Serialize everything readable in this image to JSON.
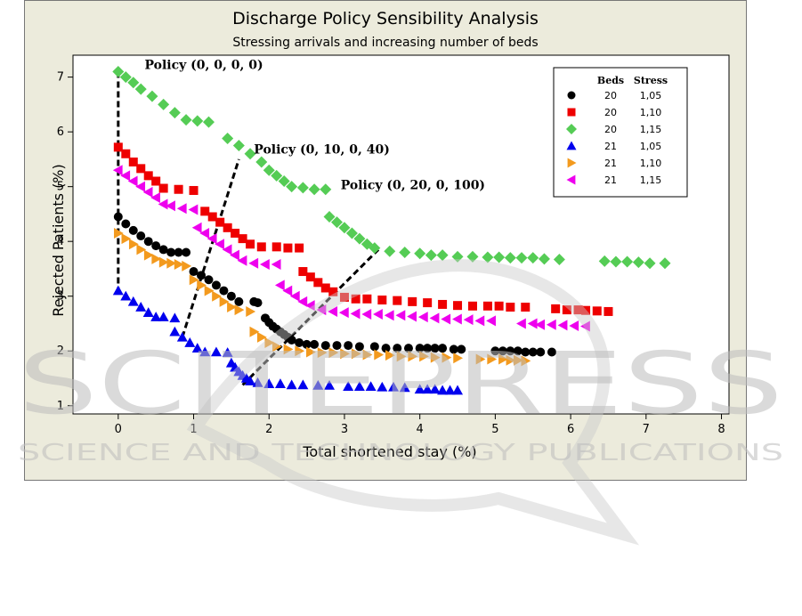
{
  "chart_data": {
    "type": "scatter",
    "title": "Discharge Policy Sensibility Analysis",
    "subtitle": "Stressing arrivals and increasing number of beds",
    "xlabel": "Total shortened stay (%)",
    "ylabel": "Rejected Patients (%)",
    "xlim": [
      -0.6,
      8.1
    ],
    "ylim": [
      0.85,
      7.4
    ],
    "x_ticks": [
      0,
      1,
      2,
      3,
      4,
      5,
      6,
      7,
      8
    ],
    "y_ticks": [
      1,
      2,
      3,
      4,
      5,
      6,
      7
    ],
    "grid": false,
    "legend_position": "top-right",
    "legend": {
      "headers": [
        "Beds",
        "Stress"
      ],
      "entries": [
        {
          "beds": "20",
          "stress": "1,05",
          "marker": "circle",
          "color": "#000000"
        },
        {
          "beds": "20",
          "stress": "1,10",
          "marker": "square",
          "color": "#ee0000"
        },
        {
          "beds": "20",
          "stress": "1,15",
          "marker": "diamond",
          "color": "#55cc55"
        },
        {
          "beds": "21",
          "stress": "1,05",
          "marker": "triangle-up",
          "color": "#0000ee"
        },
        {
          "beds": "21",
          "stress": "1,10",
          "marker": "triangle-right",
          "color": "#f39a1e"
        },
        {
          "beds": "21",
          "stress": "1,15",
          "marker": "triangle-left",
          "color": "#ee00ee"
        }
      ]
    },
    "series": [
      {
        "beds": "20",
        "stress": "1,05",
        "marker": "circle",
        "color": "#000000",
        "points": [
          [
            0,
            4.45
          ],
          [
            0.1,
            4.32
          ],
          [
            0.2,
            4.2
          ],
          [
            0.3,
            4.1
          ],
          [
            0.4,
            4.0
          ],
          [
            0.5,
            3.92
          ],
          [
            0.6,
            3.85
          ],
          [
            0.7,
            3.8
          ],
          [
            0.8,
            3.8
          ],
          [
            0.9,
            3.8
          ],
          [
            1.0,
            3.45
          ],
          [
            1.1,
            3.38
          ],
          [
            1.2,
            3.3
          ],
          [
            1.3,
            3.2
          ],
          [
            1.4,
            3.1
          ],
          [
            1.5,
            3.0
          ],
          [
            1.6,
            2.9
          ],
          [
            1.8,
            2.9
          ],
          [
            1.85,
            2.88
          ],
          [
            1.95,
            2.6
          ],
          [
            2.0,
            2.52
          ],
          [
            2.05,
            2.45
          ],
          [
            2.1,
            2.4
          ],
          [
            2.15,
            2.35
          ],
          [
            2.2,
            2.3
          ],
          [
            2.25,
            2.25
          ],
          [
            2.3,
            2.2
          ],
          [
            2.4,
            2.15
          ],
          [
            2.5,
            2.12
          ],
          [
            2.6,
            2.12
          ],
          [
            2.75,
            2.1
          ],
          [
            2.9,
            2.1
          ],
          [
            3.05,
            2.1
          ],
          [
            3.2,
            2.08
          ],
          [
            3.4,
            2.08
          ],
          [
            3.55,
            2.05
          ],
          [
            3.7,
            2.05
          ],
          [
            3.85,
            2.05
          ],
          [
            4.0,
            2.05
          ],
          [
            4.1,
            2.05
          ],
          [
            4.2,
            2.05
          ],
          [
            4.3,
            2.05
          ],
          [
            4.45,
            2.03
          ],
          [
            4.55,
            2.03
          ],
          [
            5.0,
            2.0
          ],
          [
            5.1,
            2.0
          ],
          [
            5.2,
            2.0
          ],
          [
            5.3,
            2.0
          ],
          [
            5.4,
            1.98
          ],
          [
            5.5,
            1.98
          ],
          [
            5.6,
            1.98
          ],
          [
            5.75,
            1.98
          ]
        ]
      },
      {
        "beds": "20",
        "stress": "1,10",
        "marker": "square",
        "color": "#ee0000",
        "points": [
          [
            0,
            5.72
          ],
          [
            0.1,
            5.6
          ],
          [
            0.2,
            5.45
          ],
          [
            0.3,
            5.33
          ],
          [
            0.4,
            5.2
          ],
          [
            0.5,
            5.1
          ],
          [
            0.6,
            4.97
          ],
          [
            0.8,
            4.95
          ],
          [
            1.0,
            4.93
          ],
          [
            1.15,
            4.55
          ],
          [
            1.25,
            4.45
          ],
          [
            1.35,
            4.35
          ],
          [
            1.45,
            4.25
          ],
          [
            1.55,
            4.15
          ],
          [
            1.65,
            4.05
          ],
          [
            1.75,
            3.95
          ],
          [
            1.9,
            3.9
          ],
          [
            2.1,
            3.9
          ],
          [
            2.25,
            3.88
          ],
          [
            2.4,
            3.88
          ],
          [
            2.45,
            3.45
          ],
          [
            2.55,
            3.35
          ],
          [
            2.65,
            3.25
          ],
          [
            2.75,
            3.15
          ],
          [
            2.85,
            3.08
          ],
          [
            3.0,
            2.98
          ],
          [
            3.15,
            2.95
          ],
          [
            3.3,
            2.95
          ],
          [
            3.5,
            2.93
          ],
          [
            3.7,
            2.92
          ],
          [
            3.9,
            2.9
          ],
          [
            4.1,
            2.88
          ],
          [
            4.3,
            2.85
          ],
          [
            4.5,
            2.83
          ],
          [
            4.7,
            2.82
          ],
          [
            4.9,
            2.82
          ],
          [
            5.05,
            2.82
          ],
          [
            5.2,
            2.8
          ],
          [
            5.4,
            2.8
          ],
          [
            5.8,
            2.77
          ],
          [
            5.95,
            2.75
          ],
          [
            6.1,
            2.75
          ],
          [
            6.2,
            2.74
          ],
          [
            6.35,
            2.73
          ],
          [
            6.5,
            2.72
          ]
        ]
      },
      {
        "beds": "20",
        "stress": "1,15",
        "marker": "diamond",
        "color": "#55cc55",
        "points": [
          [
            0,
            7.1
          ],
          [
            0.1,
            7.0
          ],
          [
            0.2,
            6.9
          ],
          [
            0.3,
            6.78
          ],
          [
            0.45,
            6.65
          ],
          [
            0.6,
            6.5
          ],
          [
            0.75,
            6.35
          ],
          [
            0.9,
            6.22
          ],
          [
            1.05,
            6.2
          ],
          [
            1.2,
            6.18
          ],
          [
            1.45,
            5.88
          ],
          [
            1.6,
            5.75
          ],
          [
            1.75,
            5.6
          ],
          [
            1.9,
            5.45
          ],
          [
            2.0,
            5.3
          ],
          [
            2.1,
            5.2
          ],
          [
            2.2,
            5.1
          ],
          [
            2.3,
            5.0
          ],
          [
            2.45,
            4.98
          ],
          [
            2.6,
            4.95
          ],
          [
            2.75,
            4.95
          ],
          [
            2.8,
            4.45
          ],
          [
            2.9,
            4.35
          ],
          [
            3.0,
            4.25
          ],
          [
            3.1,
            4.15
          ],
          [
            3.2,
            4.05
          ],
          [
            3.3,
            3.95
          ],
          [
            3.4,
            3.88
          ],
          [
            3.6,
            3.82
          ],
          [
            3.8,
            3.8
          ],
          [
            4.0,
            3.78
          ],
          [
            4.15,
            3.75
          ],
          [
            4.3,
            3.75
          ],
          [
            4.5,
            3.72
          ],
          [
            4.7,
            3.72
          ],
          [
            4.9,
            3.71
          ],
          [
            5.05,
            3.71
          ],
          [
            5.2,
            3.7
          ],
          [
            5.35,
            3.7
          ],
          [
            5.5,
            3.7
          ],
          [
            5.65,
            3.68
          ],
          [
            5.85,
            3.67
          ],
          [
            6.45,
            3.64
          ],
          [
            6.6,
            3.63
          ],
          [
            6.75,
            3.63
          ],
          [
            6.9,
            3.62
          ],
          [
            7.05,
            3.6
          ],
          [
            7.25,
            3.6
          ]
        ]
      },
      {
        "beds": "21",
        "stress": "1,05",
        "marker": "triangle-up",
        "color": "#0000ee",
        "points": [
          [
            0,
            3.1
          ],
          [
            0.1,
            3.0
          ],
          [
            0.2,
            2.9
          ],
          [
            0.3,
            2.8
          ],
          [
            0.4,
            2.7
          ],
          [
            0.5,
            2.62
          ],
          [
            0.6,
            2.62
          ],
          [
            0.75,
            2.6
          ],
          [
            0.75,
            2.35
          ],
          [
            0.85,
            2.25
          ],
          [
            0.95,
            2.15
          ],
          [
            1.05,
            2.05
          ],
          [
            1.15,
            1.98
          ],
          [
            1.3,
            1.98
          ],
          [
            1.45,
            1.97
          ],
          [
            1.5,
            1.78
          ],
          [
            1.55,
            1.7
          ],
          [
            1.6,
            1.62
          ],
          [
            1.65,
            1.55
          ],
          [
            1.7,
            1.5
          ],
          [
            1.75,
            1.45
          ],
          [
            1.85,
            1.42
          ],
          [
            2.0,
            1.4
          ],
          [
            2.15,
            1.4
          ],
          [
            2.3,
            1.38
          ],
          [
            2.45,
            1.38
          ],
          [
            2.65,
            1.37
          ],
          [
            2.8,
            1.37
          ],
          [
            3.05,
            1.35
          ],
          [
            3.2,
            1.35
          ],
          [
            3.35,
            1.35
          ],
          [
            3.5,
            1.34
          ],
          [
            3.65,
            1.34
          ],
          [
            3.8,
            1.33
          ],
          [
            4.0,
            1.3
          ],
          [
            4.1,
            1.3
          ],
          [
            4.2,
            1.3
          ],
          [
            4.3,
            1.28
          ],
          [
            4.4,
            1.28
          ],
          [
            4.5,
            1.28
          ]
        ]
      },
      {
        "beds": "21",
        "stress": "1,10",
        "marker": "triangle-right",
        "color": "#f39a1e",
        "points": [
          [
            0,
            4.15
          ],
          [
            0.1,
            4.05
          ],
          [
            0.2,
            3.95
          ],
          [
            0.3,
            3.85
          ],
          [
            0.4,
            3.75
          ],
          [
            0.5,
            3.68
          ],
          [
            0.6,
            3.62
          ],
          [
            0.7,
            3.6
          ],
          [
            0.8,
            3.58
          ],
          [
            0.9,
            3.55
          ],
          [
            1.0,
            3.3
          ],
          [
            1.1,
            3.2
          ],
          [
            1.2,
            3.1
          ],
          [
            1.3,
            3.0
          ],
          [
            1.4,
            2.9
          ],
          [
            1.5,
            2.8
          ],
          [
            1.6,
            2.75
          ],
          [
            1.75,
            2.72
          ],
          [
            1.8,
            2.35
          ],
          [
            1.9,
            2.25
          ],
          [
            2.0,
            2.15
          ],
          [
            2.1,
            2.08
          ],
          [
            2.25,
            2.03
          ],
          [
            2.4,
            2.0
          ],
          [
            2.55,
            1.98
          ],
          [
            2.7,
            1.97
          ],
          [
            2.85,
            1.97
          ],
          [
            3.0,
            1.95
          ],
          [
            3.15,
            1.95
          ],
          [
            3.3,
            1.93
          ],
          [
            3.45,
            1.93
          ],
          [
            3.6,
            1.92
          ],
          [
            3.75,
            1.9
          ],
          [
            3.9,
            1.9
          ],
          [
            4.05,
            1.9
          ],
          [
            4.2,
            1.88
          ],
          [
            4.35,
            1.88
          ],
          [
            4.5,
            1.87
          ],
          [
            4.8,
            1.85
          ],
          [
            4.95,
            1.85
          ],
          [
            5.1,
            1.85
          ],
          [
            5.2,
            1.83
          ],
          [
            5.3,
            1.83
          ],
          [
            5.4,
            1.82
          ]
        ]
      },
      {
        "beds": "21",
        "stress": "1,15",
        "marker": "triangle-left",
        "color": "#ee00ee",
        "points": [
          [
            0,
            5.3
          ],
          [
            0.1,
            5.2
          ],
          [
            0.2,
            5.1
          ],
          [
            0.3,
            5.0
          ],
          [
            0.4,
            4.9
          ],
          [
            0.5,
            4.8
          ],
          [
            0.6,
            4.68
          ],
          [
            0.7,
            4.65
          ],
          [
            0.85,
            4.6
          ],
          [
            1.0,
            4.58
          ],
          [
            1.05,
            4.25
          ],
          [
            1.15,
            4.15
          ],
          [
            1.25,
            4.05
          ],
          [
            1.35,
            3.95
          ],
          [
            1.45,
            3.85
          ],
          [
            1.55,
            3.75
          ],
          [
            1.65,
            3.65
          ],
          [
            1.8,
            3.6
          ],
          [
            1.95,
            3.58
          ],
          [
            2.1,
            3.58
          ],
          [
            2.15,
            3.2
          ],
          [
            2.25,
            3.1
          ],
          [
            2.35,
            3.0
          ],
          [
            2.45,
            2.9
          ],
          [
            2.55,
            2.83
          ],
          [
            2.7,
            2.75
          ],
          [
            2.85,
            2.72
          ],
          [
            3.0,
            2.7
          ],
          [
            3.15,
            2.68
          ],
          [
            3.3,
            2.67
          ],
          [
            3.45,
            2.67
          ],
          [
            3.6,
            2.65
          ],
          [
            3.75,
            2.65
          ],
          [
            3.9,
            2.63
          ],
          [
            4.05,
            2.62
          ],
          [
            4.2,
            2.6
          ],
          [
            4.35,
            2.58
          ],
          [
            4.5,
            2.58
          ],
          [
            4.65,
            2.57
          ],
          [
            4.8,
            2.55
          ],
          [
            4.95,
            2.55
          ],
          [
            5.35,
            2.5
          ],
          [
            5.5,
            2.5
          ],
          [
            5.6,
            2.48
          ],
          [
            5.75,
            2.48
          ],
          [
            5.9,
            2.47
          ],
          [
            6.05,
            2.46
          ],
          [
            6.2,
            2.45
          ]
        ]
      }
    ],
    "annotations": [
      {
        "text": "Policy (0, 0, 0, 0)",
        "x": 0.35,
        "y": 7.15,
        "line": [
          [
            0,
            7.1
          ],
          [
            0,
            3.1
          ]
        ]
      },
      {
        "text": "Policy (0, 10, 0, 40)",
        "x": 1.8,
        "y": 5.6,
        "line": [
          [
            0.85,
            2.25
          ],
          [
            1.6,
            5.5
          ]
        ]
      },
      {
        "text": "Policy (0, 20, 0, 100)",
        "x": 2.95,
        "y": 4.95,
        "line": [
          [
            1.65,
            1.38
          ],
          [
            3.45,
            3.85
          ]
        ]
      }
    ]
  },
  "watermark": {
    "big": "SCITEPRESS",
    "small": "SCIENCE AND TECHNOLOGY PUBLICATIONS"
  }
}
